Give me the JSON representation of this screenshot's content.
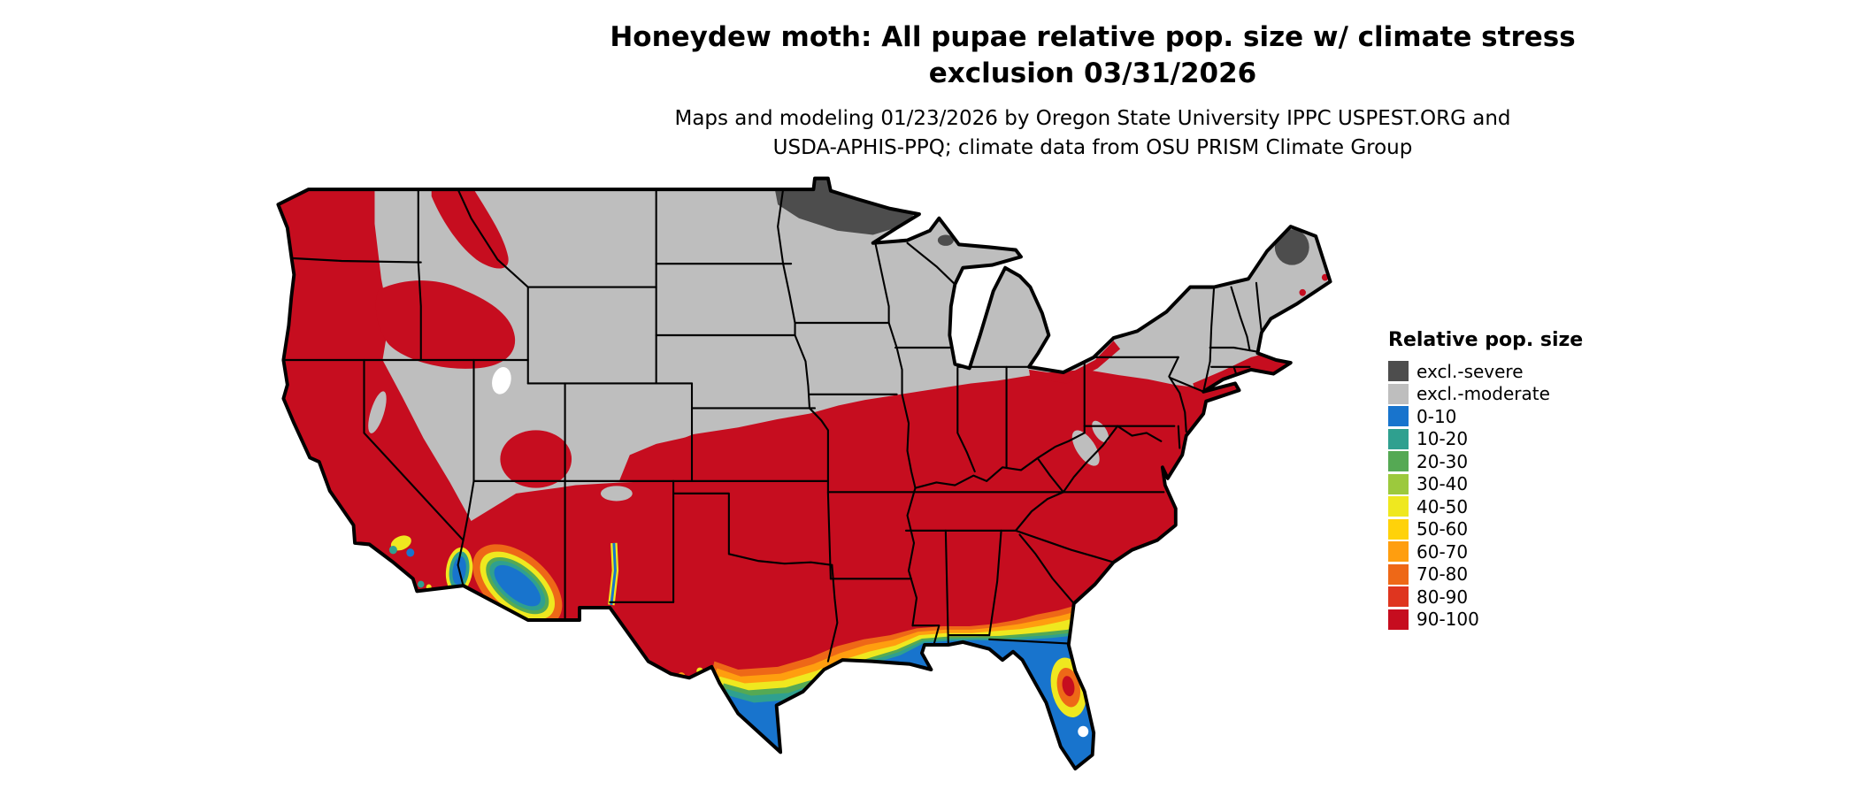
{
  "title": {
    "line1": "Honeydew moth: All pupae relative pop. size w/ climate stress",
    "line2": "exclusion 03/31/2026"
  },
  "subtitle": {
    "line1": "Maps and modeling 01/23/2026 by Oregon State University IPPC USPEST.ORG and",
    "line2": "USDA-APHIS-PPQ; climate data from OSU PRISM Climate Group"
  },
  "legend": {
    "title": "Relative pop. size",
    "items": [
      {
        "label": "excl.-severe",
        "color": "#4D4D4D"
      },
      {
        "label": "excl.-moderate",
        "color": "#BEBEBE"
      },
      {
        "label": "0-10",
        "color": "#1874CD"
      },
      {
        "label": "10-20",
        "color": "#2FA08F"
      },
      {
        "label": "20-30",
        "color": "#55A954"
      },
      {
        "label": "30-40",
        "color": "#9CC93D"
      },
      {
        "label": "40-50",
        "color": "#EFE81F"
      },
      {
        "label": "50-60",
        "color": "#FFD20A"
      },
      {
        "label": "60-70",
        "color": "#FF9E0F"
      },
      {
        "label": "70-80",
        "color": "#EE6817"
      },
      {
        "label": "80-90",
        "color": "#DF351F"
      },
      {
        "label": "90-100",
        "color": "#C60D1F"
      }
    ]
  }
}
